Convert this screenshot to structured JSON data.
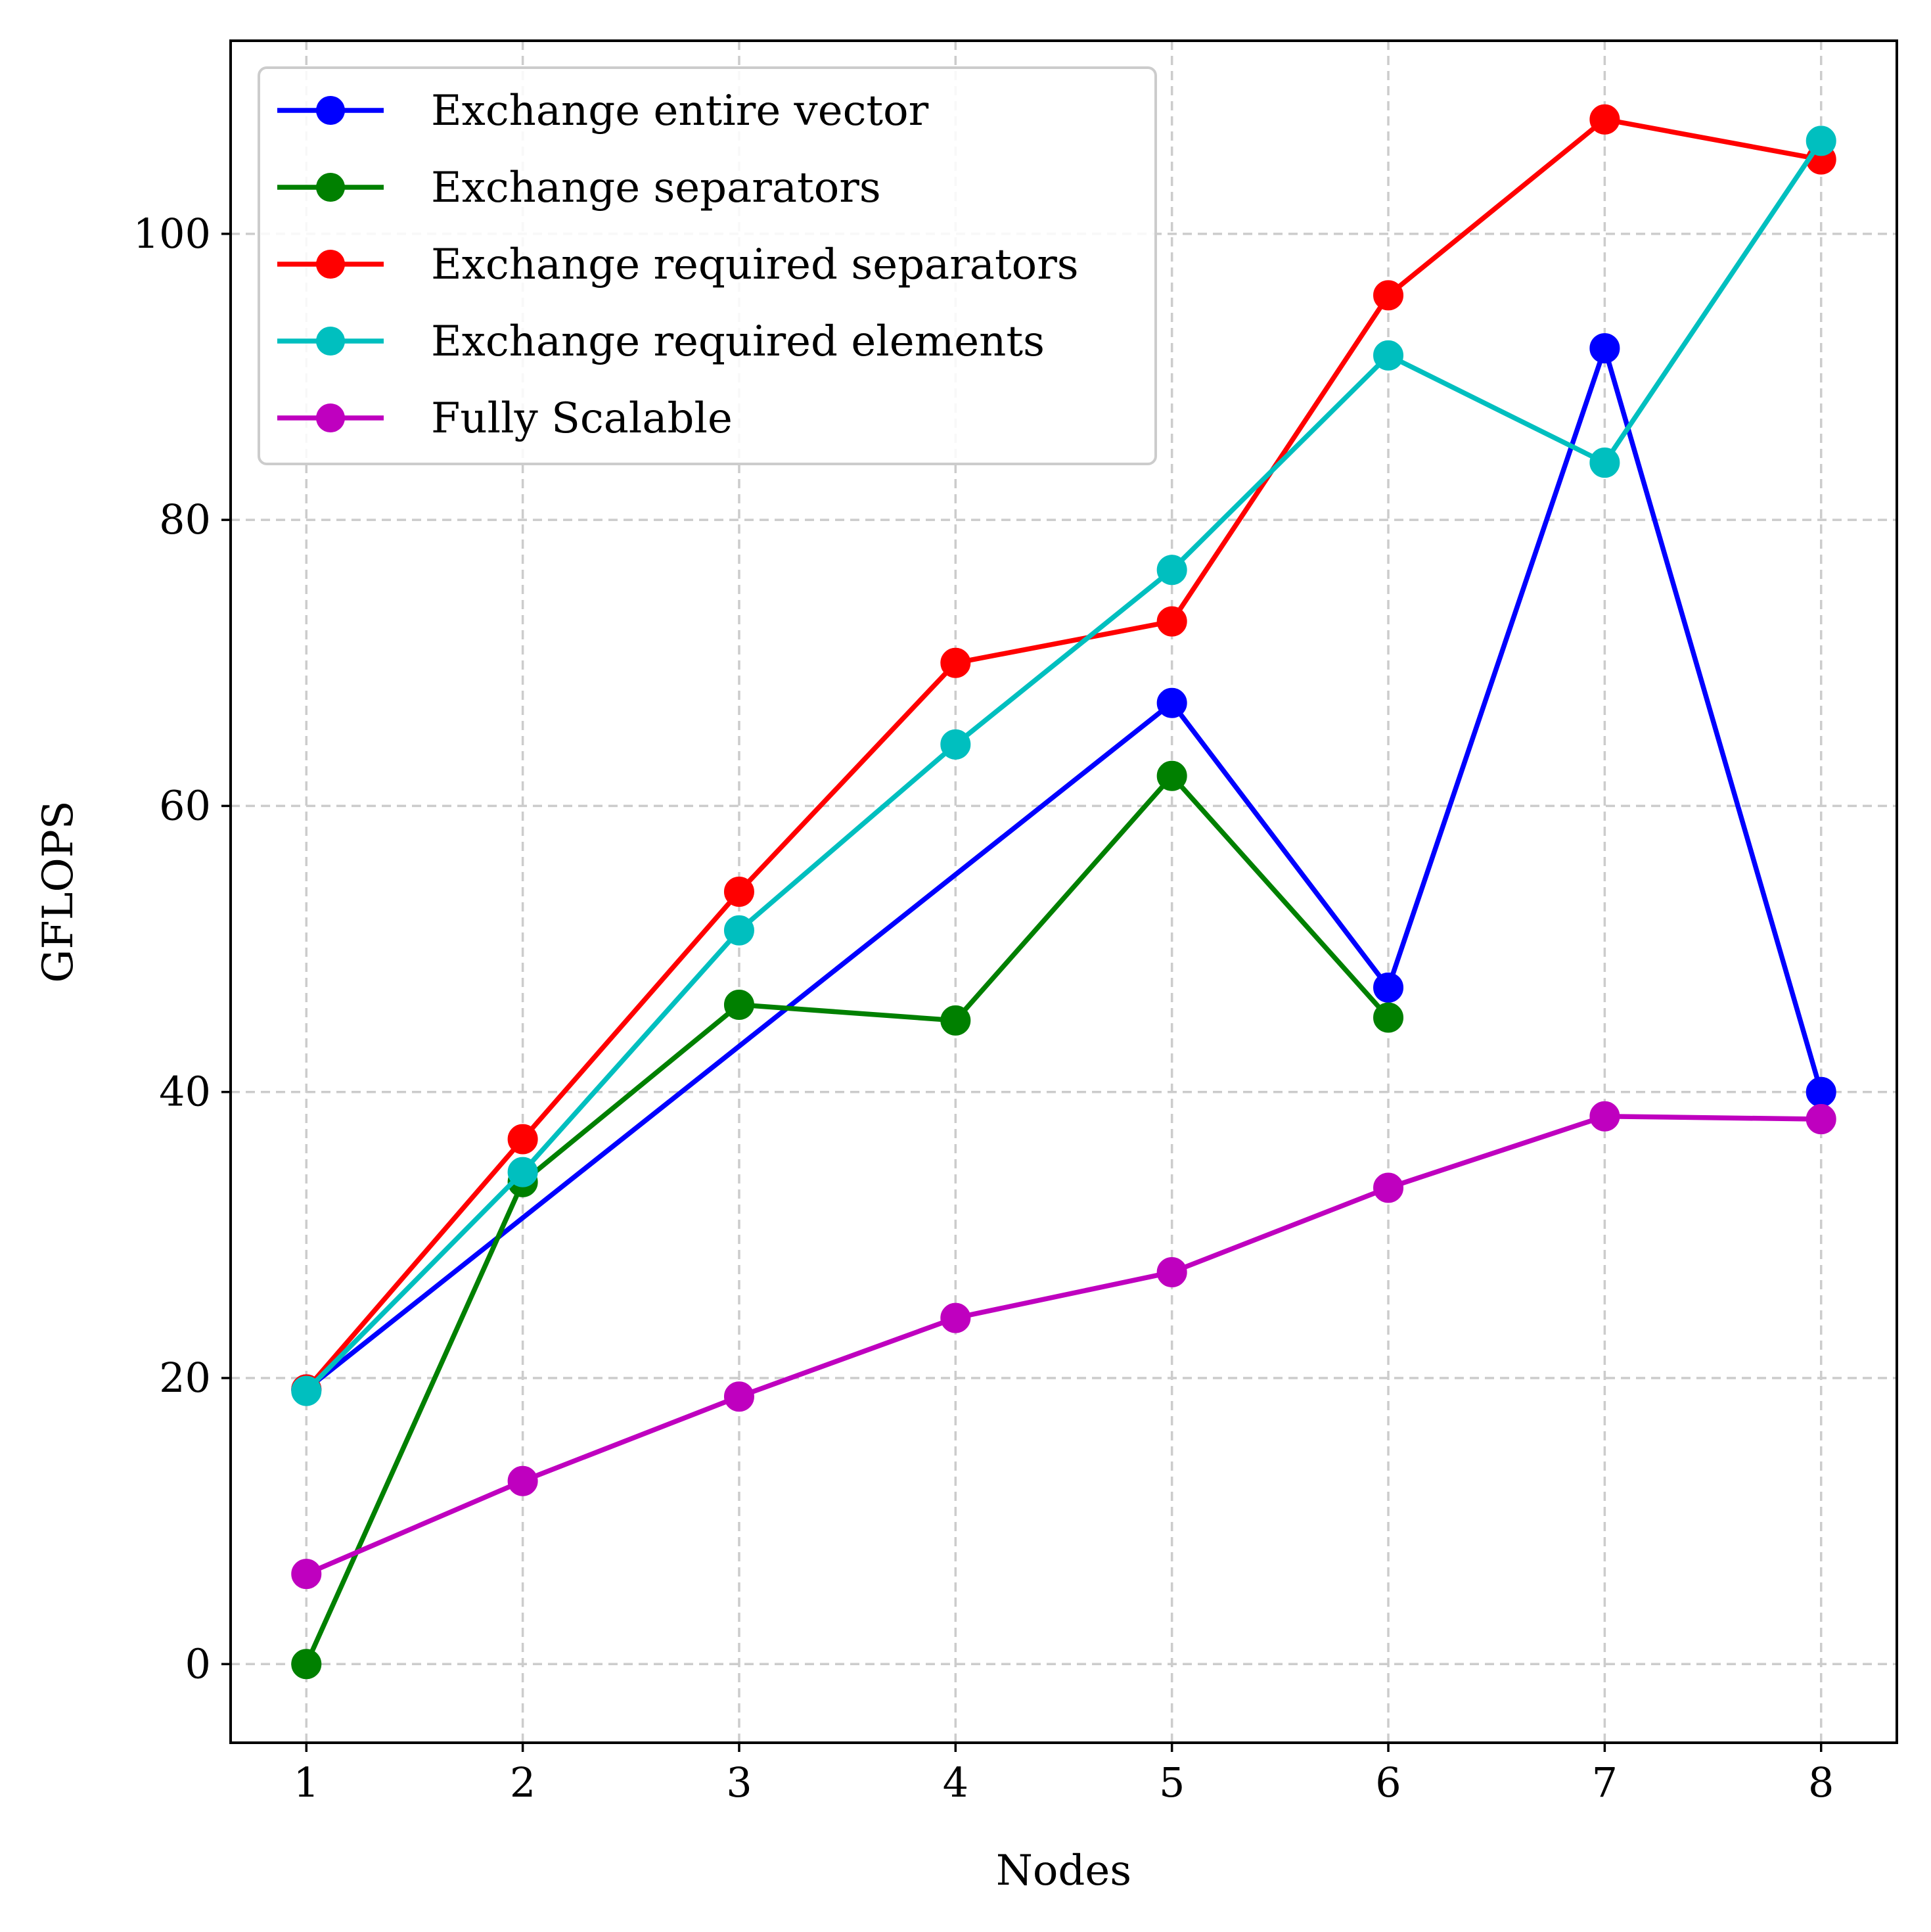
{
  "chart_data": {
    "type": "line",
    "title": "",
    "xlabel": "Nodes",
    "ylabel": "GFLOPS",
    "x": [
      1,
      2,
      3,
      4,
      5,
      6,
      7,
      8
    ],
    "xlim": [
      0.65,
      8.35
    ],
    "ylim": [
      -5.5,
      113.5
    ],
    "xticks": [
      "1",
      "2",
      "3",
      "4",
      "5",
      "6",
      "7",
      "8"
    ],
    "yticks": [
      0,
      20,
      40,
      60,
      80,
      100
    ],
    "grid": true,
    "legend_position": "top-left",
    "series": [
      {
        "name": "Exchange entire vector",
        "color": "#0000ff",
        "points": [
          [
            1,
            19.2
          ],
          [
            5,
            67.2
          ],
          [
            6,
            47.3
          ],
          [
            7,
            92.0
          ],
          [
            8,
            40.0
          ]
        ]
      },
      {
        "name": "Exchange separators",
        "color": "#008000",
        "points": [
          [
            1,
            0.0
          ],
          [
            2,
            33.7
          ],
          [
            3,
            46.1
          ],
          [
            4,
            45.0
          ],
          [
            5,
            62.1
          ],
          [
            6,
            45.2
          ]
        ]
      },
      {
        "name": "Exchange required separators",
        "color": "#ff0000",
        "points": [
          [
            1,
            19.2
          ],
          [
            2,
            36.7
          ],
          [
            3,
            54.0
          ],
          [
            4,
            70.0
          ],
          [
            5,
            72.9
          ],
          [
            6,
            95.7
          ],
          [
            7,
            108.0
          ],
          [
            8,
            105.2
          ]
        ]
      },
      {
        "name": "Exchange required elements",
        "color": "#00bfbf",
        "points": [
          [
            1,
            19.1
          ],
          [
            2,
            34.4
          ],
          [
            3,
            51.3
          ],
          [
            4,
            64.3
          ],
          [
            5,
            76.5
          ],
          [
            6,
            91.5
          ],
          [
            7,
            84.0
          ],
          [
            8,
            106.5
          ]
        ]
      },
      {
        "name": "Fully Scalable",
        "color": "#bf00bf",
        "points": [
          [
            1,
            6.3
          ],
          [
            2,
            12.8
          ],
          [
            3,
            18.7
          ],
          [
            4,
            24.2
          ],
          [
            5,
            27.4
          ],
          [
            6,
            33.3
          ],
          [
            7,
            38.3
          ],
          [
            8,
            38.1
          ]
        ]
      }
    ]
  }
}
